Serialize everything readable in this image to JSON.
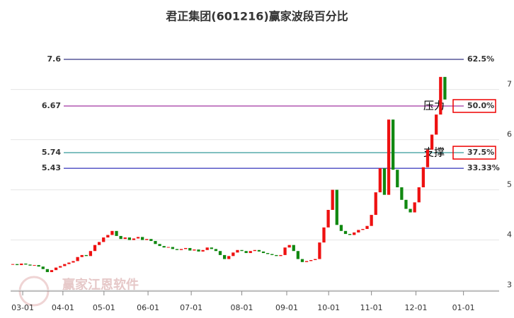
{
  "chart_data": {
    "type": "candlestick",
    "title": "君正集团(601216)赢家波段百分比",
    "watermark": "赢家江恩软件",
    "up_color": "#ee1111",
    "down_color": "#118811",
    "xlim": [
      -0.5,
      115.5
    ],
    "xticks": [
      {
        "value": 2.3,
        "label": "03-01"
      },
      {
        "value": 11.6,
        "label": "04-01"
      },
      {
        "value": 21.1,
        "label": "05-01"
      },
      {
        "value": 31.3,
        "label": "06-01"
      },
      {
        "value": 41.3,
        "label": "07-01"
      },
      {
        "value": 53,
        "label": "08-01"
      },
      {
        "value": 63.4,
        "label": "09-01"
      },
      {
        "value": 73.1,
        "label": "10-01"
      },
      {
        "value": 83,
        "label": "11-01"
      },
      {
        "value": 93.3,
        "label": "12-01"
      },
      {
        "value": 104.3,
        "label": "01-01"
      }
    ],
    "ylim": [
      3,
      8.2
    ],
    "yticks": [
      3,
      4,
      5,
      6,
      7
    ],
    "grid": true,
    "values": [
      3.52,
      3.5,
      3.53,
      3.51,
      3.49,
      3.5,
      3.47,
      3.42,
      3.36,
      3.4,
      3.45,
      3.48,
      3.52,
      3.55,
      3.58,
      3.66,
      3.7,
      3.68,
      3.78,
      3.9,
      3.96,
      4.05,
      4.1,
      4.18,
      4.08,
      4.02,
      4.05,
      4.0,
      4.03,
      4.06,
      4.0,
      4.02,
      3.98,
      3.92,
      3.88,
      3.85,
      3.86,
      3.82,
      3.8,
      3.82,
      3.84,
      3.79,
      3.81,
      3.77,
      3.8,
      3.85,
      3.82,
      3.78,
      3.7,
      3.62,
      3.68,
      3.75,
      3.8,
      3.78,
      3.74,
      3.78,
      3.8,
      3.77,
      3.74,
      3.72,
      3.7,
      3.68,
      3.7,
      3.85,
      3.9,
      3.78,
      3.62,
      3.56,
      3.58,
      3.6,
      3.62,
      3.95,
      4.25,
      4.6,
      5.0,
      4.3,
      4.18,
      4.12,
      4.1,
      4.15,
      4.2,
      4.22,
      4.28,
      4.5,
      4.95,
      5.43,
      4.9,
      6.4,
      5.4,
      5.05,
      4.8,
      4.62,
      4.55,
      4.75,
      5.05,
      5.45,
      5.8,
      6.1,
      6.5,
      7.25,
      6.8
    ],
    "levels": [
      {
        "value": 7.6,
        "percent": "62.5%",
        "color": "#000066",
        "boxed": false
      },
      {
        "value": 6.67,
        "percent": "50.0%",
        "color": "#880088",
        "boxed": true,
        "annotation": "压力"
      },
      {
        "value": 5.74,
        "percent": "37.5%",
        "color": "#008080",
        "boxed": true,
        "annotation": "支撑"
      },
      {
        "value": 5.43,
        "percent": "33.33%",
        "color": "#0000aa",
        "boxed": false
      }
    ]
  }
}
